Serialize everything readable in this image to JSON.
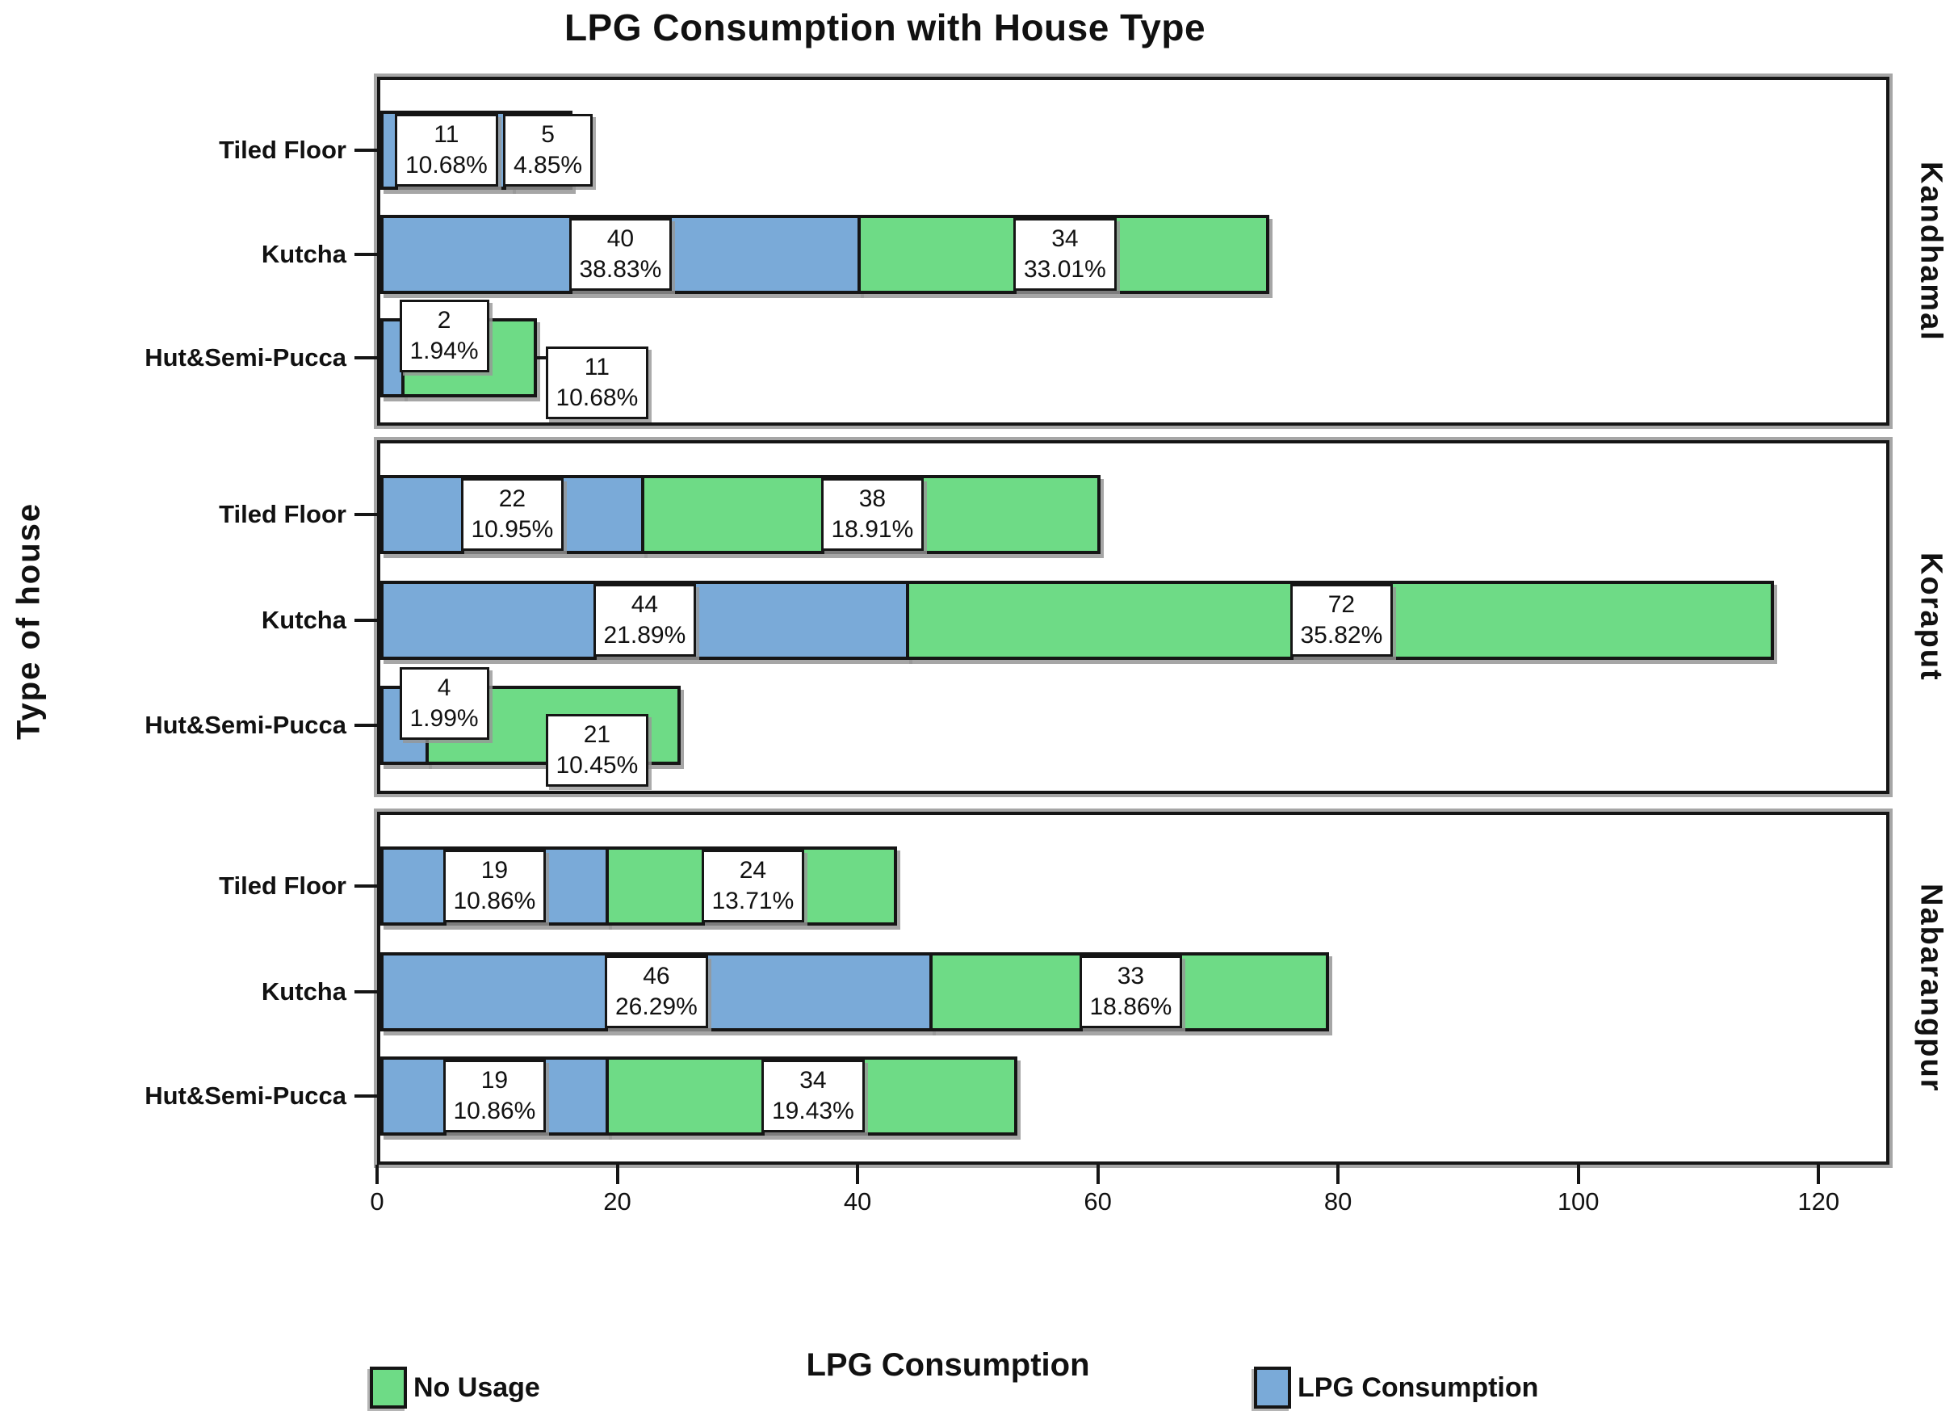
{
  "title": "LPG Consumption with House Type",
  "x_axis": {
    "label": "LPG Consumption",
    "ticks": [
      0,
      20,
      40,
      60,
      80,
      100,
      120
    ],
    "tick_labels": [
      "0",
      "20",
      "40",
      "60",
      "80",
      "100",
      "120"
    ],
    "max": 125.9
  },
  "y_axis": {
    "label": "Type of house"
  },
  "legend": [
    {
      "label": "No Usage",
      "color": "#6edb86",
      "series": "no_usage"
    },
    {
      "label": "LPG Consumption",
      "color": "#7aaad8",
      "series": "lpg"
    }
  ],
  "colors": {
    "lpg_blue": "#7aaad8",
    "no_usage_green": "#6edb86",
    "border": "#151515",
    "shadow_gray": "#a6a6a6"
  },
  "chart_data": {
    "type": "bar",
    "orientation": "horizontal",
    "stacked": true,
    "title": "LPG Consumption with House Type",
    "xlabel": "LPG Consumption",
    "ylabel": "Type of house",
    "xlim": [
      0,
      125.9
    ],
    "xticks": [
      0,
      20,
      40,
      60,
      80,
      100,
      120
    ],
    "grid": false,
    "legend_position": "bottom",
    "series_order": [
      "LPG Consumption",
      "No Usage"
    ],
    "series_colors": {
      "LPG Consumption": "#7aaad8",
      "No Usage": "#6edb86"
    },
    "panels": [
      {
        "name": "Kandhamal",
        "rows": [
          {
            "category": "Tiled Floor",
            "lpg": {
              "count": 11,
              "pct": "10.68%"
            },
            "no_usage": {
              "count": 5,
              "pct": "4.85%"
            }
          },
          {
            "category": "Kutcha",
            "lpg": {
              "count": 40,
              "pct": "38.83%"
            },
            "no_usage": {
              "count": 34,
              "pct": "33.01%"
            }
          },
          {
            "category": "Hut&Semi-Pucca",
            "lpg": {
              "count": 2,
              "pct": "1.94%"
            },
            "no_usage": {
              "count": 11,
              "pct": "10.68%"
            }
          }
        ]
      },
      {
        "name": "Koraput",
        "rows": [
          {
            "category": "Tiled Floor",
            "lpg": {
              "count": 22,
              "pct": "10.95%"
            },
            "no_usage": {
              "count": 38,
              "pct": "18.91%"
            }
          },
          {
            "category": "Kutcha",
            "lpg": {
              "count": 44,
              "pct": "21.89%"
            },
            "no_usage": {
              "count": 72,
              "pct": "35.82%"
            }
          },
          {
            "category": "Hut&Semi-Pucca",
            "lpg": {
              "count": 4,
              "pct": "1.99%"
            },
            "no_usage": {
              "count": 21,
              "pct": "10.45%"
            }
          }
        ]
      },
      {
        "name": "Nabarangpur",
        "rows": [
          {
            "category": "Tiled Floor",
            "lpg": {
              "count": 19,
              "pct": "10.86%"
            },
            "no_usage": {
              "count": 24,
              "pct": "13.71%"
            }
          },
          {
            "category": "Kutcha",
            "lpg": {
              "count": 46,
              "pct": "26.29%"
            },
            "no_usage": {
              "count": 33,
              "pct": "18.86%"
            }
          },
          {
            "category": "Hut&Semi-Pucca",
            "lpg": {
              "count": 19,
              "pct": "10.86%"
            },
            "no_usage": {
              "count": 34,
              "pct": "19.43%"
            }
          }
        ]
      }
    ]
  }
}
